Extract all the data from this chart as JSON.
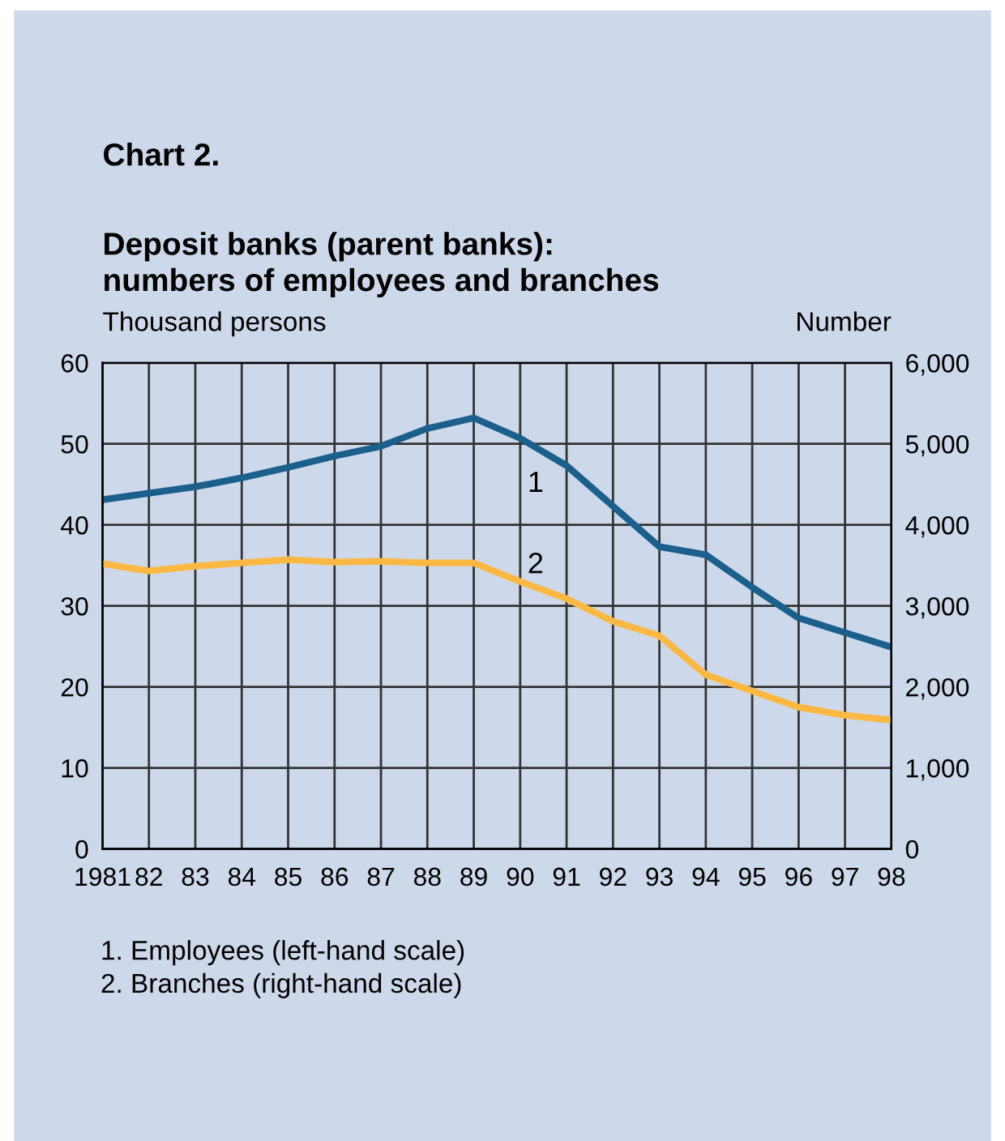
{
  "chart_data": {
    "type": "line",
    "title": "Chart 2.",
    "subtitle": "Deposit banks (parent banks):\nnumbers of employees and branches",
    "ylabel": "Thousand persons",
    "y2label": "Number",
    "x": [
      1981,
      1982,
      1983,
      1984,
      1985,
      1986,
      1987,
      1988,
      1989,
      1990,
      1991,
      1992,
      1993,
      1994,
      1995,
      1996,
      1997,
      1998
    ],
    "series": [
      {
        "color": "#1b5f8c",
        "values": [
          43.1,
          43.9,
          44.7,
          45.8,
          47.1,
          48.5,
          49.7,
          51.9,
          53.2,
          50.7,
          47.3,
          42.3,
          37.3,
          36.3,
          32.3,
          28.5,
          26.7,
          24.9
        ]
      },
      {
        "color": "#fbb843",
        "axis": "y2",
        "values": [
          3520,
          3430,
          3490,
          3530,
          3570,
          3540,
          3550,
          3530,
          3530,
          3300,
          3090,
          2810,
          2630,
          2150,
          1950,
          1750,
          1650,
          1590
        ]
      }
    ],
    "xlim": [
      1981,
      1998
    ],
    "xticks": [
      {
        "value": 1981,
        "label": "1981"
      },
      {
        "value": 1982,
        "label": "82"
      },
      {
        "value": 1983,
        "label": "83"
      },
      {
        "value": 1984,
        "label": "84"
      },
      {
        "value": 1985,
        "label": "85"
      },
      {
        "value": 1986,
        "label": "86"
      },
      {
        "value": 1987,
        "label": "87"
      },
      {
        "value": 1988,
        "label": "88"
      },
      {
        "value": 1989,
        "label": "89"
      },
      {
        "value": 1990,
        "label": "90"
      },
      {
        "value": 1991,
        "label": "91"
      },
      {
        "value": 1992,
        "label": "92"
      },
      {
        "value": 1993,
        "label": "93"
      },
      {
        "value": 1994,
        "label": "94"
      },
      {
        "value": 1995,
        "label": "95"
      },
      {
        "value": 1996,
        "label": "96"
      },
      {
        "value": 1997,
        "label": "97"
      },
      {
        "value": 1998,
        "label": "98"
      }
    ],
    "ylim": [
      0,
      60
    ],
    "yticks": [
      0,
      10,
      20,
      30,
      40,
      50,
      60
    ],
    "y2lim": [
      0,
      6000
    ],
    "y2ticks": [
      0,
      {
        "value": 1000,
        "label": "1,000"
      },
      {
        "value": 2000,
        "label": "2,000"
      },
      {
        "value": 3000,
        "label": "3,000"
      },
      {
        "value": 4000,
        "label": "4,000"
      },
      {
        "value": 5000,
        "label": "5,000"
      },
      {
        "value": 6000,
        "label": "6,000"
      }
    ],
    "grid": true,
    "legend": false,
    "annotations": [
      "1",
      "2",
      "1. Employees (left-hand scale)\n2. Branches (right-hand scale)"
    ]
  }
}
